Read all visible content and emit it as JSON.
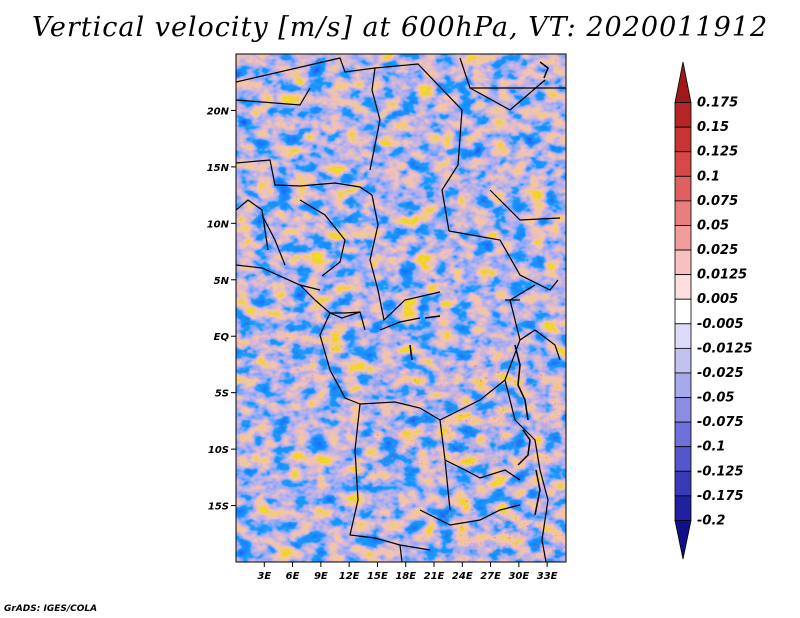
{
  "title": "Vertical velocity [m/s] at 600hPa, VT: 2020011912",
  "credit": "GrADS: IGES/COLA",
  "map": {
    "lon_range": [
      0,
      35
    ],
    "lat_range": [
      -20,
      25
    ],
    "lat_ticks": [
      {
        "value": 20,
        "label": "20N"
      },
      {
        "value": 15,
        "label": "15N"
      },
      {
        "value": 10,
        "label": "10N"
      },
      {
        "value": 5,
        "label": "5N"
      },
      {
        "value": 0,
        "label": "EQ"
      },
      {
        "value": -5,
        "label": "5S"
      },
      {
        "value": -10,
        "label": "10S"
      },
      {
        "value": -15,
        "label": "15S"
      }
    ],
    "lon_ticks": [
      {
        "value": 3,
        "label": "3E"
      },
      {
        "value": 6,
        "label": "6E"
      },
      {
        "value": 9,
        "label": "9E"
      },
      {
        "value": 12,
        "label": "12E"
      },
      {
        "value": 15,
        "label": "15E"
      },
      {
        "value": 18,
        "label": "18E"
      },
      {
        "value": 21,
        "label": "21E"
      },
      {
        "value": 24,
        "label": "24E"
      },
      {
        "value": 27,
        "label": "27E"
      },
      {
        "value": 30,
        "label": "30E"
      },
      {
        "value": 33,
        "label": "33E"
      }
    ]
  },
  "colorbar": {
    "labels": [
      "0.175",
      "0.15",
      "0.125",
      "0.1",
      "0.075",
      "0.05",
      "0.025",
      "0.0125",
      "0.005",
      "-0.005",
      "-0.0125",
      "-0.025",
      "-0.05",
      "-0.075",
      "-0.1",
      "-0.125",
      "-0.175",
      "-0.2"
    ],
    "colors": [
      "#9e1a1a",
      "#b52525",
      "#c83434",
      "#d64747",
      "#e06060",
      "#e97e7e",
      "#f29d9d",
      "#f8c0c0",
      "#fce0e0",
      "#ffffff",
      "#dcdcf8",
      "#c2c2f2",
      "#a8a8ec",
      "#8c8ce4",
      "#7070dc",
      "#5555cc",
      "#3a3ab8",
      "#2020a0",
      "#10108a"
    ]
  }
}
